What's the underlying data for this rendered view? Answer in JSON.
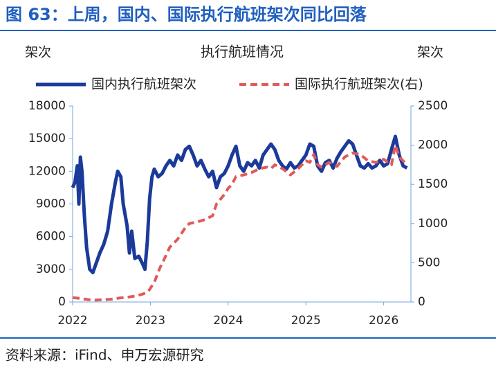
{
  "chart_data": {
    "type": "line",
    "figure_title": "图 63：上周，国内、国际执行航班架次同比回落",
    "title": "执行航班情况",
    "y_label": "架次",
    "y2_label": "架次",
    "source": "资料来源：iFind、申万宏源研究",
    "xlim": [
      2022,
      2026.35
    ],
    "xticks": [
      2022,
      2023,
      2024,
      2025,
      2026
    ],
    "ylim": [
      0,
      18000
    ],
    "yticks": [
      0,
      3000,
      6000,
      9000,
      12000,
      15000,
      18000
    ],
    "y2lim": [
      0,
      2500
    ],
    "y2ticks": [
      0,
      500,
      1000,
      1500,
      2000,
      2500
    ],
    "grid": false,
    "legend": "top",
    "series": [
      {
        "name": "国内执行航班架次",
        "color": "#1b3a9a",
        "dash": false,
        "x": [
          2022.0,
          2022.03,
          2022.06,
          2022.08,
          2022.1,
          2022.12,
          2022.15,
          2022.18,
          2022.22,
          2022.26,
          2022.3,
          2022.35,
          2022.4,
          2022.45,
          2022.5,
          2022.55,
          2022.58,
          2022.62,
          2022.65,
          2022.7,
          2022.73,
          2022.76,
          2022.8,
          2022.85,
          2022.9,
          2022.93,
          2022.96,
          2022.99,
          2023.02,
          2023.05,
          2023.1,
          2023.15,
          2023.2,
          2023.25,
          2023.3,
          2023.35,
          2023.4,
          2023.45,
          2023.5,
          2023.55,
          2023.6,
          2023.65,
          2023.7,
          2023.75,
          2023.8,
          2023.85,
          2023.9,
          2023.95,
          2024.0,
          2024.05,
          2024.1,
          2024.15,
          2024.2,
          2024.25,
          2024.3,
          2024.35,
          2024.4,
          2024.45,
          2024.5,
          2024.55,
          2024.6,
          2024.65,
          2024.7,
          2024.75,
          2024.8,
          2024.85,
          2024.9,
          2024.95,
          2025.0,
          2025.05,
          2025.1,
          2025.15,
          2025.2,
          2025.25,
          2025.3,
          2025.35,
          2025.4,
          2025.45,
          2025.5,
          2025.55,
          2025.6,
          2025.65,
          2025.7,
          2025.75,
          2025.8,
          2025.85,
          2025.9,
          2025.95,
          2026.0,
          2026.05,
          2026.1,
          2026.15,
          2026.2,
          2026.25,
          2026.3
        ],
        "values": [
          10500,
          11000,
          12500,
          9000,
          13300,
          12000,
          8000,
          5000,
          3000,
          2700,
          3500,
          4500,
          5300,
          6500,
          9000,
          11000,
          12000,
          11500,
          9000,
          7000,
          4500,
          6500,
          4000,
          4200,
          3500,
          3000,
          5500,
          9500,
          11500,
          12200,
          11500,
          11800,
          12500,
          13000,
          12500,
          13500,
          13000,
          14000,
          14300,
          13500,
          12500,
          13000,
          12200,
          11500,
          12000,
          10500,
          11500,
          11800,
          12500,
          13500,
          14300,
          12500,
          12000,
          12800,
          12500,
          13000,
          12300,
          13500,
          14000,
          14500,
          14000,
          13000,
          12500,
          12200,
          12800,
          12300,
          12500,
          13000,
          13500,
          14500,
          14300,
          12500,
          12000,
          12800,
          13000,
          12300,
          13200,
          13800,
          14300,
          14800,
          14500,
          13500,
          12500,
          12300,
          12700,
          12300,
          12500,
          13000,
          12500,
          12700,
          14000,
          15200,
          13500,
          12500,
          12300
        ]
      },
      {
        "name": "国际执行航班架次(右)",
        "color": "#e05a5a",
        "dash": true,
        "axis": "y2",
        "x": [
          2022.0,
          2022.1,
          2022.2,
          2022.3,
          2022.4,
          2022.5,
          2022.6,
          2022.7,
          2022.8,
          2022.9,
          2022.97,
          2023.05,
          2023.12,
          2023.18,
          2023.25,
          2023.3,
          2023.35,
          2023.45,
          2023.5,
          2023.6,
          2023.7,
          2023.8,
          2023.85,
          2023.95,
          2024.0,
          2024.05,
          2024.1,
          2024.2,
          2024.3,
          2024.4,
          2024.5,
          2024.55,
          2024.6,
          2024.7,
          2024.8,
          2024.9,
          2025.0,
          2025.05,
          2025.1,
          2025.15,
          2025.2,
          2025.3,
          2025.4,
          2025.5,
          2025.6,
          2025.7,
          2025.8,
          2025.9,
          2026.0,
          2026.1,
          2026.15,
          2026.2,
          2026.3
        ],
        "values": [
          55,
          45,
          30,
          25,
          30,
          35,
          50,
          60,
          75,
          100,
          130,
          250,
          430,
          550,
          700,
          750,
          800,
          950,
          1000,
          1020,
          1050,
          1100,
          1250,
          1370,
          1450,
          1500,
          1600,
          1620,
          1650,
          1700,
          1720,
          1700,
          1750,
          1700,
          1620,
          1700,
          1800,
          1780,
          1880,
          1750,
          1720,
          1780,
          1730,
          1850,
          1900,
          1880,
          1800,
          1780,
          1820,
          1750,
          2000,
          1850,
          1750
        ]
      }
    ]
  }
}
